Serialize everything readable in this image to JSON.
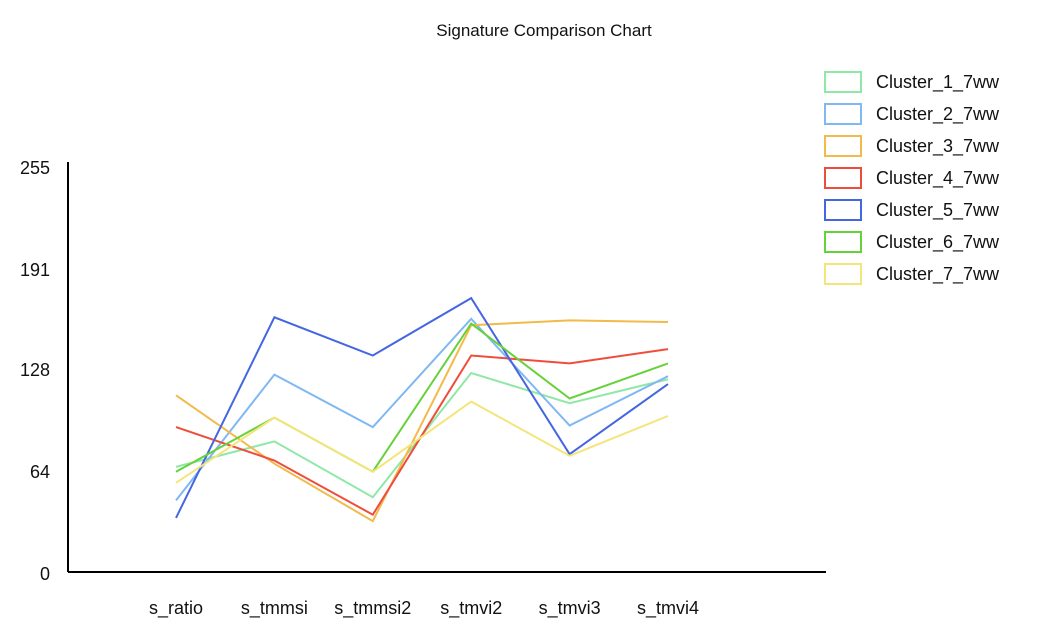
{
  "chart_data": {
    "type": "line",
    "title": "Signature Comparison Chart",
    "xlabel": "",
    "ylabel": "",
    "categories": [
      "s_ratio",
      "s_tmmsi",
      "s_tmmsi2",
      "s_tmvi2",
      "s_tmvi3",
      "s_tmvi4"
    ],
    "y_ticks": [
      "0",
      "64",
      "128",
      "191",
      "255"
    ],
    "ylim": [
      0,
      255
    ],
    "grid": false,
    "legend": "top-right",
    "series": [
      {
        "name": "Cluster_1_7ww",
        "color": "#8fe8a6",
        "values": [
          66,
          82,
          47,
          125,
          106,
          121
        ]
      },
      {
        "name": "Cluster_2_7ww",
        "color": "#7fb8f2",
        "values": [
          45,
          124,
          91,
          159,
          92,
          123
        ]
      },
      {
        "name": "Cluster_3_7ww",
        "color": "#f2ba4a",
        "values": [
          111,
          68,
          32,
          155,
          158,
          157
        ]
      },
      {
        "name": "Cluster_4_7ww",
        "color": "#f04c3c",
        "values": [
          91,
          70,
          36,
          136,
          131,
          140
        ]
      },
      {
        "name": "Cluster_5_7ww",
        "color": "#4466e0",
        "values": [
          34,
          160,
          136,
          172,
          74,
          118
        ]
      },
      {
        "name": "Cluster_6_7ww",
        "color": "#66d23a",
        "values": [
          63,
          97,
          63,
          156,
          109,
          131
        ]
      },
      {
        "name": "Cluster_7_7ww",
        "color": "#f4e57a",
        "values": [
          56,
          97,
          63,
          107,
          73,
          98
        ]
      }
    ]
  }
}
